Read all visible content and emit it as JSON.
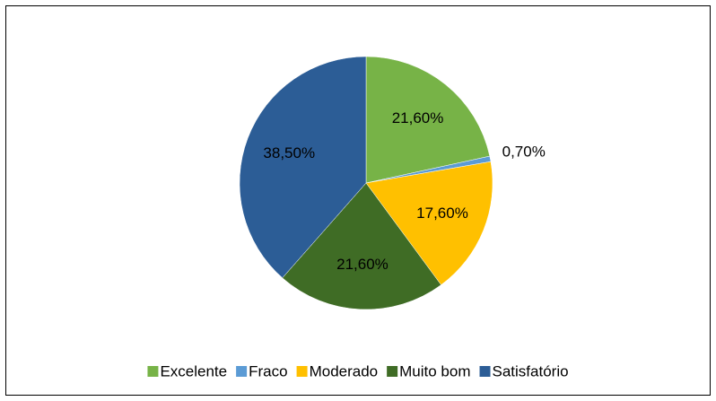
{
  "chart_data": {
    "type": "pie",
    "categories": [
      "Excelente",
      "Fraco",
      "Moderado",
      "Muito bom",
      "Satisfatório"
    ],
    "values": [
      21.6,
      0.7,
      17.6,
      21.6,
      38.5
    ],
    "value_labels": [
      "21,60%",
      "0,70%",
      "17,60%",
      "21,60%",
      "38,50%"
    ],
    "colors": [
      "#77b347",
      "#5b9bd5",
      "#ffc000",
      "#3f6c25",
      "#2c5d96"
    ],
    "legend": "bottom"
  }
}
